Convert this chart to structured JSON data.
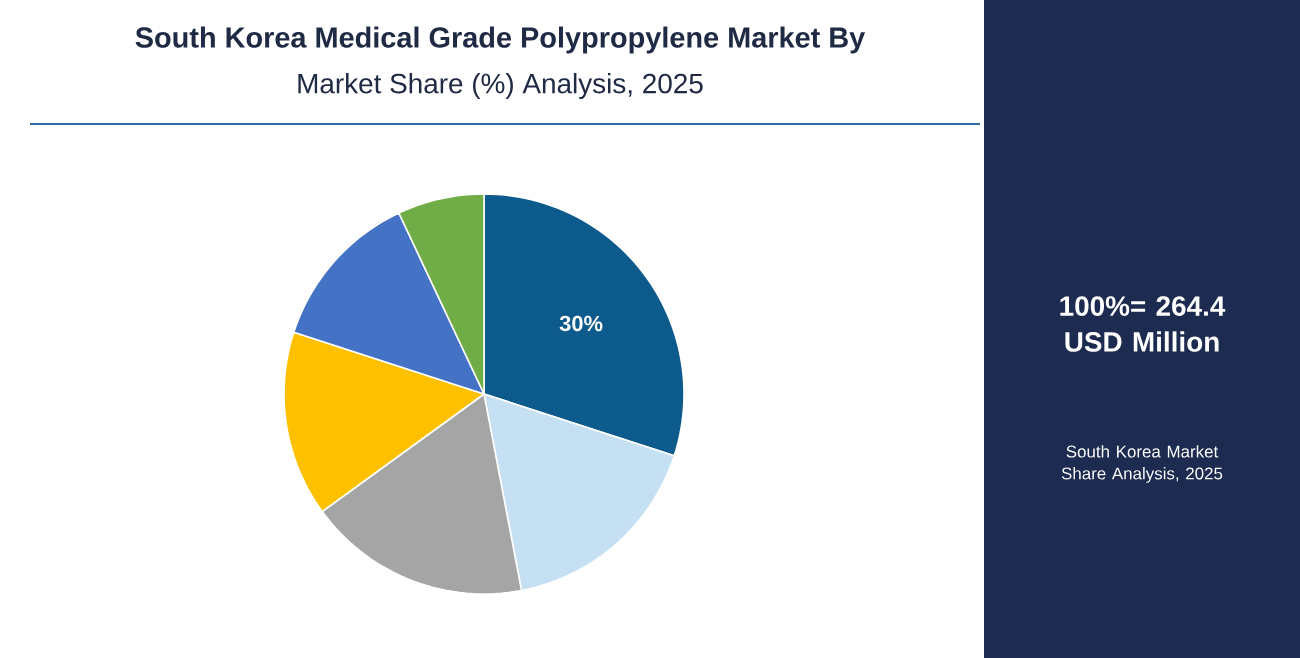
{
  "chart_data": {
    "type": "pie",
    "title": "South Korea Medical Grade Polypropylene Market By",
    "subtitle": "Market Share (%) Analysis, 2025",
    "categories": [
      null,
      null,
      null,
      null,
      null,
      null
    ],
    "values": [
      30,
      17,
      18,
      15,
      13,
      7
    ],
    "colors": [
      "#0d5a8c",
      "#c5e0f2",
      "#a5a5a5",
      "#ffc000",
      "#4472c4",
      "#70ad47"
    ],
    "value_labels": [
      "30%",
      null,
      null,
      null,
      null,
      null
    ],
    "annotations": [
      "100%= 264.4 USD Million",
      "South Korea Market Share Analysis, 2025"
    ]
  }
}
